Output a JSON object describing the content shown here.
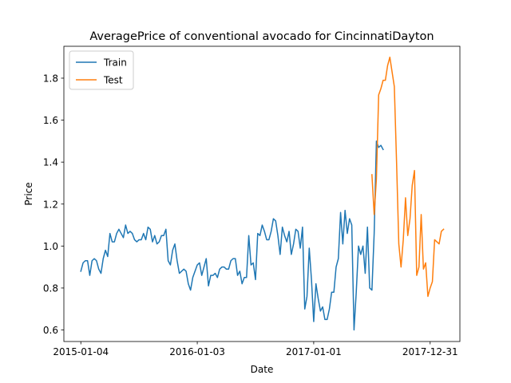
{
  "chart_data": {
    "type": "line",
    "title": "AveragePrice of conventional avocado for CincinnatiDayton",
    "xlabel": "Date",
    "ylabel": "Price",
    "x_tick_labels": [
      "2015-01-04",
      "2016-01-03",
      "2017-01-01",
      "2017-12-31"
    ],
    "y_ticks": [
      0.6,
      0.8,
      1.0,
      1.2,
      1.4,
      1.6,
      1.8
    ],
    "y_tick_labels": [
      "0.6",
      "0.8",
      "1.0",
      "1.2",
      "1.4",
      "1.6",
      "1.8"
    ],
    "xlim": [
      "2014-11-12",
      "2018-04-03"
    ],
    "ylim": [
      0.545,
      1.952
    ],
    "grid": false,
    "legend": {
      "position": "top-left",
      "entries": [
        "Train",
        "Test"
      ]
    },
    "series": [
      {
        "name": "Train",
        "color": "#1f77b4",
        "start_date": "2015-01-04",
        "step_days": 7,
        "values": [
          0.88,
          0.92,
          0.93,
          0.93,
          0.86,
          0.93,
          0.94,
          0.93,
          0.89,
          0.87,
          0.94,
          0.98,
          0.95,
          1.06,
          1.02,
          1.02,
          1.06,
          1.08,
          1.06,
          1.04,
          1.1,
          1.06,
          1.07,
          1.06,
          1.03,
          1.02,
          1.03,
          1.03,
          1.06,
          1.03,
          1.09,
          1.08,
          1.02,
          1.05,
          1.01,
          1.02,
          1.05,
          1.05,
          1.08,
          0.93,
          0.91,
          0.98,
          1.01,
          0.93,
          0.87,
          0.88,
          0.89,
          0.88,
          0.82,
          0.79,
          0.85,
          0.88,
          0.91,
          0.92,
          0.86,
          0.9,
          0.94,
          0.81,
          0.86,
          0.86,
          0.87,
          0.85,
          0.89,
          0.9,
          0.9,
          0.89,
          0.89,
          0.93,
          0.94,
          0.94,
          0.86,
          0.88,
          0.82,
          0.85,
          0.85,
          1.05,
          0.91,
          0.92,
          0.84,
          1.06,
          1.05,
          1.1,
          1.07,
          1.03,
          1.03,
          1.07,
          1.13,
          1.12,
          1.05,
          0.96,
          1.09,
          1.05,
          1.02,
          1.07,
          0.96,
          1.01,
          1.08,
          1.07,
          0.99,
          1.09,
          0.7,
          0.76,
          0.99,
          0.84,
          0.64,
          0.82,
          0.75,
          0.69,
          0.71,
          0.65,
          0.65,
          0.7,
          0.78,
          0.78,
          0.9,
          0.94,
          1.16,
          1.01,
          1.17,
          1.06,
          1.13,
          1.1,
          0.6,
          0.78,
          1.0,
          0.96,
          1.0,
          0.87,
          1.09,
          0.8,
          0.79,
          1.06,
          1.5,
          1.47,
          1.48,
          1.46
        ]
      },
      {
        "name": "Test",
        "color": "#ff7f0e",
        "start_date": "2017-07-02",
        "step_days": 7,
        "values": [
          1.34,
          1.15,
          1.32,
          1.72,
          1.75,
          1.79,
          1.79,
          1.86,
          1.9,
          1.83,
          1.76,
          1.4,
          1.01,
          0.9,
          1.03,
          1.23,
          1.05,
          1.13,
          1.29,
          1.36,
          0.86,
          0.9,
          1.15,
          0.89,
          0.92,
          0.76,
          0.8,
          0.83,
          1.03,
          1.02,
          1.01,
          1.07,
          1.08
        ]
      }
    ]
  }
}
